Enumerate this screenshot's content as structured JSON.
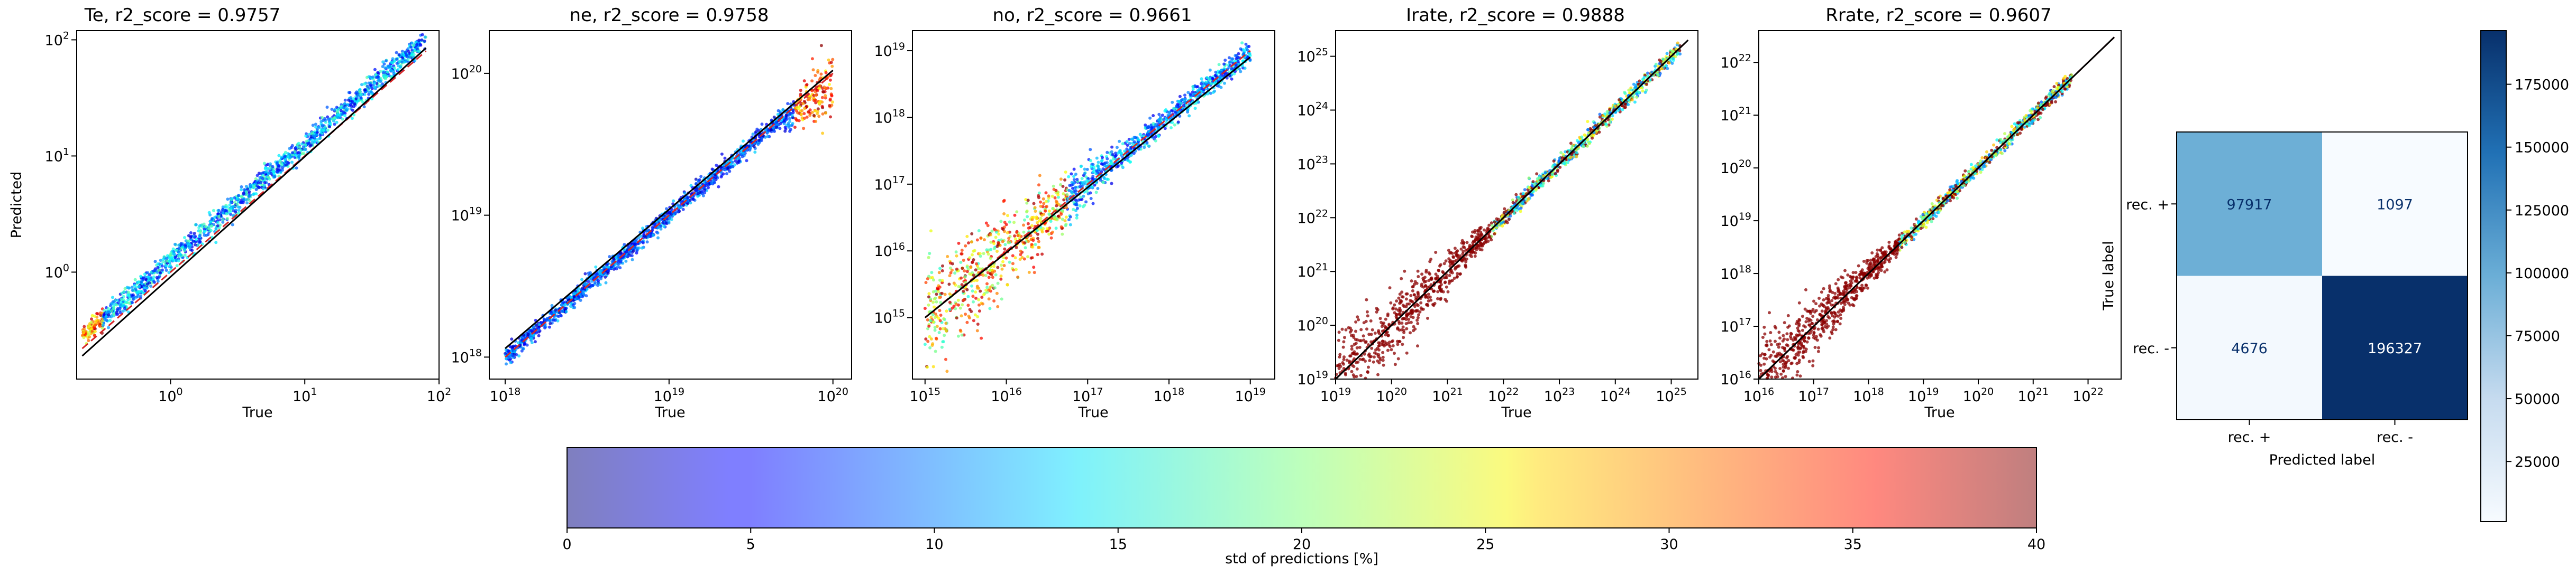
{
  "chart_data": [
    {
      "type": "scatter",
      "title": "Te, r2_score = 0.9757",
      "xlabel": "True",
      "ylabel": "Predicted",
      "scale": "log",
      "xlim": [
        0.2,
        100
      ],
      "ylim": [
        0.12,
        120
      ],
      "xticks": [
        {
          "v": 1,
          "b": "10",
          "e": "0"
        },
        {
          "v": 10,
          "b": "10",
          "e": "1"
        },
        {
          "v": 100,
          "b": "10",
          "e": "2"
        }
      ],
      "yticks": [
        {
          "v": 1,
          "b": "10",
          "e": "0"
        },
        {
          "v": 10,
          "b": "10",
          "e": "1"
        },
        {
          "v": 100,
          "b": "10",
          "e": "2"
        }
      ],
      "fit_line": [
        [
          0.22,
          0.19
        ],
        [
          80,
          85
        ]
      ],
      "identity_line": [
        [
          0.22,
          0.22
        ],
        [
          80,
          80
        ]
      ],
      "scatter_range": [
        0.22,
        80
      ],
      "grid": false
    },
    {
      "type": "scatter",
      "title": "ne, r2_score = 0.9758",
      "xlabel": "True",
      "ylabel": "",
      "scale": "log",
      "xlim": [
        8e+17,
        1.3e+20
      ],
      "ylim": [
        7e+17,
        2e+20
      ],
      "xticks": [
        {
          "v": 1e+18,
          "b": "10",
          "e": "18"
        },
        {
          "v": 1e+19,
          "b": "10",
          "e": "19"
        },
        {
          "v": 1e+20,
          "b": "10",
          "e": "20"
        }
      ],
      "yticks": [
        {
          "v": 1e+18,
          "b": "10",
          "e": "18"
        },
        {
          "v": 1e+19,
          "b": "10",
          "e": "19"
        },
        {
          "v": 1e+20,
          "b": "10",
          "e": "20"
        }
      ],
      "fit_line": [
        [
          1e+18,
          1.15e+18
        ],
        [
          1e+20,
          1.05e+20
        ]
      ],
      "identity_line": [
        [
          1e+18,
          1e+18
        ],
        [
          1e+20,
          1e+20
        ]
      ],
      "scatter_range": [
        1e+18,
        1e+20
      ],
      "grid": false
    },
    {
      "type": "scatter",
      "title": "no, r2_score = 0.9661",
      "xlabel": "True",
      "ylabel": "",
      "scale": "log",
      "xlim": [
        700000000000000.0,
        2e+19
      ],
      "ylim": [
        120000000000000.0,
        2e+19
      ],
      "xticks": [
        {
          "v": 1000000000000000.0,
          "b": "10",
          "e": "15"
        },
        {
          "v": 1e+16,
          "b": "10",
          "e": "16"
        },
        {
          "v": 1e+17,
          "b": "10",
          "e": "17"
        },
        {
          "v": 1e+18,
          "b": "10",
          "e": "18"
        },
        {
          "v": 1e+19,
          "b": "10",
          "e": "19"
        }
      ],
      "yticks": [
        {
          "v": 1000000000000000.0,
          "b": "10",
          "e": "15"
        },
        {
          "v": 1e+16,
          "b": "10",
          "e": "16"
        },
        {
          "v": 1e+17,
          "b": "10",
          "e": "17"
        },
        {
          "v": 1e+18,
          "b": "10",
          "e": "18"
        },
        {
          "v": 1e+19,
          "b": "10",
          "e": "19"
        }
      ],
      "fit_line": [
        [
          1000000000000000.0,
          1000000000000000.0
        ],
        [
          1e+19,
          8e+18
        ]
      ],
      "identity_line": [
        [
          1000000000000000.0,
          1000000000000000.0
        ],
        [
          1e+19,
          1e+19
        ]
      ],
      "scatter_range": [
        1000000000000000.0,
        1e+19
      ],
      "grid": false
    },
    {
      "type": "scatter",
      "title": "Irate, r2_score = 0.9888",
      "xlabel": "True",
      "ylabel": "",
      "scale": "log",
      "xlim": [
        1e+19,
        3e+25
      ],
      "ylim": [
        1e+19,
        3e+25
      ],
      "xticks": [
        {
          "v": 1e+19,
          "b": "10",
          "e": "19"
        },
        {
          "v": 1e+20,
          "b": "10",
          "e": "20"
        },
        {
          "v": 1e+21,
          "b": "10",
          "e": "21"
        },
        {
          "v": 1e+22,
          "b": "10",
          "e": "22"
        },
        {
          "v": 1e+23,
          "b": "10",
          "e": "23"
        },
        {
          "v": 1e+24,
          "b": "10",
          "e": "24"
        },
        {
          "v": 1e+25,
          "b": "10",
          "e": "25"
        }
      ],
      "yticks": [
        {
          "v": 1e+19,
          "b": "10",
          "e": "19"
        },
        {
          "v": 1e+20,
          "b": "10",
          "e": "20"
        },
        {
          "v": 1e+21,
          "b": "10",
          "e": "21"
        },
        {
          "v": 1e+22,
          "b": "10",
          "e": "22"
        },
        {
          "v": 1e+23,
          "b": "10",
          "e": "23"
        },
        {
          "v": 1e+24,
          "b": "10",
          "e": "24"
        },
        {
          "v": 1e+25,
          "b": "10",
          "e": "25"
        }
      ],
      "fit_line": [
        [
          1e+19,
          1e+19
        ],
        [
          2e+25,
          2e+25
        ]
      ],
      "identity_line": [
        [
          1e+19,
          1e+19
        ],
        [
          2e+25,
          2e+25
        ]
      ],
      "scatter_range": [
        1e+19,
        1.5e+25
      ],
      "grid": false
    },
    {
      "type": "scatter",
      "title": "Rrate, r2_score = 0.9607",
      "xlabel": "True",
      "ylabel": "",
      "scale": "log",
      "xlim": [
        1e+16,
        4e+22
      ],
      "ylim": [
        1e+16,
        4e+22
      ],
      "xticks": [
        {
          "v": 1e+16,
          "b": "10",
          "e": "16"
        },
        {
          "v": 1e+17,
          "b": "10",
          "e": "17"
        },
        {
          "v": 1e+18,
          "b": "10",
          "e": "18"
        },
        {
          "v": 1e+19,
          "b": "10",
          "e": "19"
        },
        {
          "v": 1e+20,
          "b": "10",
          "e": "20"
        },
        {
          "v": 1e+21,
          "b": "10",
          "e": "21"
        },
        {
          "v": 1e+22,
          "b": "10",
          "e": "22"
        }
      ],
      "yticks": [
        {
          "v": 1e+16,
          "b": "10",
          "e": "16"
        },
        {
          "v": 1e+17,
          "b": "10",
          "e": "17"
        },
        {
          "v": 1e+18,
          "b": "10",
          "e": "18"
        },
        {
          "v": 1e+19,
          "b": "10",
          "e": "19"
        },
        {
          "v": 1e+20,
          "b": "10",
          "e": "20"
        },
        {
          "v": 1e+21,
          "b": "10",
          "e": "21"
        },
        {
          "v": 1e+22,
          "b": "10",
          "e": "22"
        }
      ],
      "fit_line": [
        [
          1e+16,
          1e+16
        ],
        [
          3e+22,
          3e+22
        ]
      ],
      "identity_line": [
        [
          1e+16,
          1e+16
        ],
        [
          3e+22,
          3e+22
        ]
      ],
      "scatter_range": [
        1e+16,
        5e+21
      ],
      "grid": false
    },
    {
      "type": "heatmap",
      "title": "",
      "xlabel": "Predicted label",
      "ylabel": "True label",
      "x_categories": [
        "rec. +",
        "rec. -"
      ],
      "y_categories": [
        "rec. +",
        "rec. -"
      ],
      "values": [
        [
          97917,
          1097
        ],
        [
          4676,
          196327
        ]
      ],
      "colormap": "Blues",
      "colorbar": {
        "min": 1097,
        "max": 196327,
        "ticks": [
          25000,
          50000,
          75000,
          100000,
          125000,
          150000,
          175000
        ]
      }
    }
  ],
  "colorbar_std": {
    "label": "std of predictions [%]",
    "min": 0,
    "max": 40,
    "ticks": [
      0,
      5,
      10,
      15,
      20,
      25,
      30,
      35,
      40
    ],
    "colormap": "jet",
    "alpha": 0.5
  },
  "colors": {
    "fit_line": "#000000",
    "identity_line": "#d62728",
    "outlier": "#8b0000"
  }
}
